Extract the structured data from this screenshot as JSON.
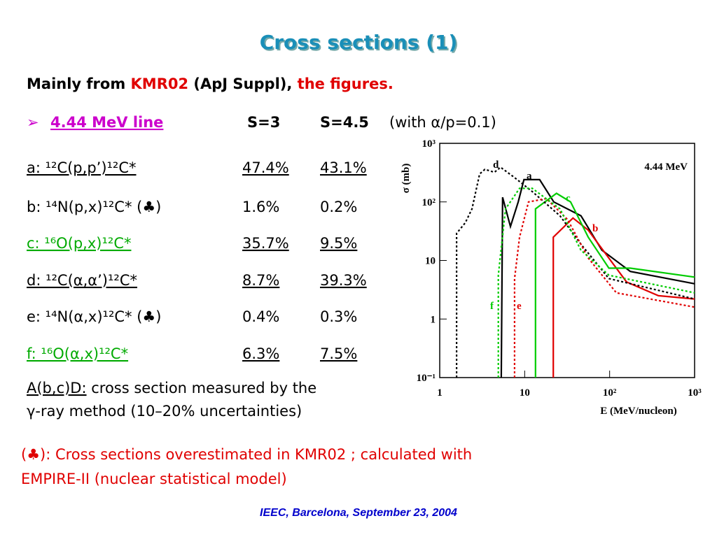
{
  "title": "Cross sections (1)",
  "intro": [
    "Mainly from ",
    "KMR02",
    " (ApJ Suppl), ",
    "the figures."
  ],
  "line_header": {
    "name": "4.44 MeV line",
    "col1": "S=3",
    "col2": "S=4.5",
    "note": "(with α/p=0.1)"
  },
  "table": {
    "rows": [
      [
        "a: ¹²C(p,p’)¹²C*",
        "47.4%",
        "43.1%"
      ],
      [
        "b: ¹⁴N(p,x)¹²C* (♣)",
        "1.6%",
        "0.2%"
      ],
      [
        "c: ¹⁶O(p,x)¹²C*",
        "35.7%",
        "9.5%"
      ],
      [
        "d: ¹²C(α,α’)¹²C*",
        "8.7%",
        "39.3%"
      ],
      [
        "e: ¹⁴N(α,x)¹²C* (♣)",
        "0.4%",
        "0.3%"
      ],
      [
        "f: ¹⁶O(α,x)¹²C*",
        "6.3%",
        "7.5%"
      ]
    ]
  },
  "method_note": [
    "A(b,c)D:",
    " cross section measured by the",
    "γ-ray method (10–20% uncertainties)"
  ],
  "warning": [
    "(♣): Cross sections overestimated in KMR02 ; calculated with",
    "EMPIRE-II (nuclear statistical model)"
  ],
  "footer": "IEEC, Barcelona, September 23, 2004",
  "chart_data": {
    "type": "line",
    "title": "4.44 MeV",
    "x_label": "E (MeV/nucleon)",
    "y_label": "σ (mb)",
    "log_x": true,
    "log_y": true,
    "xlim": [
      1,
      1000
    ],
    "ylim": [
      0.1,
      1000
    ],
    "xticks": [
      1,
      10,
      {
        "value": 100,
        "label": "10²"
      },
      {
        "value": 1000,
        "label": "10³"
      }
    ],
    "yticks": [
      {
        "value": 0.1,
        "label": "10⁻¹"
      },
      1,
      10,
      {
        "value": 100,
        "label": "10²"
      },
      {
        "value": 1000,
        "label": "10³"
      }
    ],
    "series": [
      {
        "name": "a",
        "color": "#000000",
        "style": "solid",
        "x": [
          5.3,
          5.5,
          6.8,
          8.4,
          9.8,
          15,
          22,
          46,
          81,
          175,
          1000
        ],
        "values": [
          0.1,
          120,
          38,
          100,
          240,
          240,
          100,
          58,
          15,
          6.5,
          4
        ]
      },
      {
        "name": "b",
        "color": "#e00000",
        "style": "solid",
        "x": [
          21.7,
          21.7,
          37,
          56,
          74,
          158,
          375,
          1000
        ],
        "values": [
          0.1,
          25,
          53,
          33,
          19,
          4.3,
          2.5,
          2.2
        ]
      },
      {
        "name": "c",
        "color": "#00cc00",
        "style": "solid",
        "x": [
          13.4,
          13.4,
          23.7,
          34.7,
          56,
          98,
          175,
          1000
        ],
        "values": [
          0.1,
          76,
          140,
          100,
          25,
          7.4,
          7.4,
          5.2
        ]
      },
      {
        "name": "d",
        "color": "#000000",
        "style": "dotted",
        "x": [
          1.58,
          1.58,
          2.0,
          2.4,
          2.95,
          3.4,
          4.4,
          5.2,
          7.6,
          12.3,
          26,
          46,
          98,
          1000
        ],
        "values": [
          0.1,
          29,
          44,
          76,
          300,
          360,
          320,
          390,
          260,
          150,
          58,
          19,
          4.9,
          2.2
        ]
      },
      {
        "name": "e",
        "color": "#e00000",
        "style": "dotted",
        "x": [
          7.6,
          7.6,
          8.7,
          11.1,
          18,
          32,
          56,
          120,
          1000
        ],
        "values": [
          0.1,
          4.9,
          25,
          100,
          114,
          50,
          11,
          2.8,
          1.6
        ]
      },
      {
        "name": "f",
        "color": "#00cc00",
        "style": "dotted",
        "x": [
          4.9,
          4.9,
          5.95,
          8.7,
          12.3,
          26,
          46,
          98,
          1000
        ],
        "values": [
          0.1,
          5.6,
          76,
          170,
          170,
          76,
          15,
          5.6,
          2.8
        ]
      }
    ]
  }
}
